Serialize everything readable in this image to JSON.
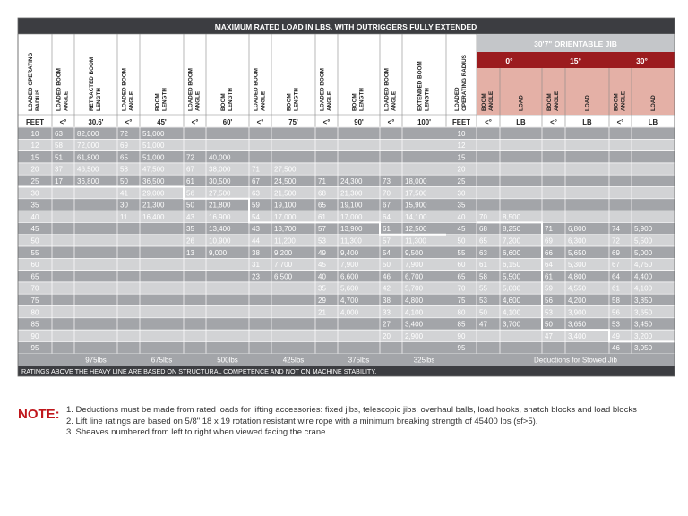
{
  "table": {
    "title": "MAXIMUM RATED LOAD IN LBS. WITH OUTRIGGERS FULLY EXTENDED",
    "jib_title": "30'7\" ORIENTABLE JIB",
    "main_headers": [
      "LOADED OPERATING RADIUS",
      "LOADED BOOM ANGLE",
      "RETRACTED BOOM LENGTH",
      "LOADED BOOM ANGLE",
      "BOOM LENGTH",
      "LOADED BOOM ANGLE",
      "BOOM LENGTH",
      "LOADED BOOM ANGLE",
      "BOOM LENGTH",
      "LOADED BOOM ANGLE",
      "BOOM LENGTH",
      "LOADED BOOM ANGLE",
      "EXTENDED BOOM LENGTH"
    ],
    "main_units": [
      "FEET",
      "<°",
      "30.6'",
      "<°",
      "45'",
      "<°",
      "60'",
      "<°",
      "75'",
      "<°",
      "90'",
      "<°",
      "100'"
    ],
    "jib_radius_header": "LOADED OPERATING RADIUS",
    "jib_radius_unit": "FEET",
    "jib_offsets": [
      "0°",
      "15°",
      "30°"
    ],
    "jib_sub_headers": [
      "BOOM ANGLE",
      "LOAD",
      "BOOM ANGLE",
      "LOAD",
      "BOOM ANGLE",
      "LOAD"
    ],
    "jib_units": [
      "<°",
      "LB",
      "<°",
      "LB",
      "<°",
      "LB"
    ],
    "rows": [
      [
        "10",
        "63",
        "82,000",
        "72",
        "51,000",
        "",
        "",
        "",
        "",
        "",
        "",
        "",
        ""
      ],
      [
        "12",
        "58",
        "72,000",
        "69",
        "51,000",
        "",
        "",
        "",
        "",
        "",
        "",
        "",
        ""
      ],
      [
        "15",
        "51",
        "61,800",
        "65",
        "51,000",
        "72",
        "40,000",
        "",
        "",
        "",
        "",
        "",
        ""
      ],
      [
        "20",
        "37",
        "46,500",
        "58",
        "47,500",
        "67",
        "38,000",
        "71",
        "27,500",
        "",
        "",
        "",
        ""
      ],
      [
        "25",
        "17",
        "36,800",
        "50",
        "36,500",
        "61",
        "30,500",
        "67",
        "24,500",
        "71",
        "24,300",
        "73",
        "18,000"
      ],
      [
        "30",
        "",
        "",
        "41",
        "29,000",
        "56",
        "27,500",
        "63",
        "21,500",
        "68",
        "21,300",
        "70",
        "17,500"
      ],
      [
        "35",
        "",
        "",
        "30",
        "21,300",
        "50",
        "21,800",
        "59",
        "19,100",
        "65",
        "19,100",
        "67",
        "15,900"
      ],
      [
        "40",
        "",
        "",
        "11",
        "16,400",
        "43",
        "16,900",
        "54",
        "17,000",
        "61",
        "17,000",
        "64",
        "14,100"
      ],
      [
        "45",
        "",
        "",
        "",
        "",
        "35",
        "13,400",
        "43",
        "13,700",
        "57",
        "13,900",
        "61",
        "12,500"
      ],
      [
        "50",
        "",
        "",
        "",
        "",
        "26",
        "10,900",
        "44",
        "11,200",
        "53",
        "11,300",
        "57",
        "11,300"
      ],
      [
        "55",
        "",
        "",
        "",
        "",
        "13",
        "9,000",
        "38",
        "9,200",
        "49",
        "9,400",
        "54",
        "9,500"
      ],
      [
        "60",
        "",
        "",
        "",
        "",
        "",
        "",
        "31",
        "7,700",
        "45",
        "7,900",
        "50",
        "7,900"
      ],
      [
        "65",
        "",
        "",
        "",
        "",
        "",
        "",
        "23",
        "6,500",
        "40",
        "6,600",
        "46",
        "6,700"
      ],
      [
        "70",
        "",
        "",
        "",
        "",
        "",
        "",
        "",
        "",
        "35",
        "5,600",
        "42",
        "5,700"
      ],
      [
        "75",
        "",
        "",
        "",
        "",
        "",
        "",
        "",
        "",
        "29",
        "4,700",
        "38",
        "4,800"
      ],
      [
        "80",
        "",
        "",
        "",
        "",
        "",
        "",
        "",
        "",
        "21",
        "4,000",
        "33",
        "4,100"
      ],
      [
        "85",
        "",
        "",
        "",
        "",
        "",
        "",
        "",
        "",
        "",
        "",
        "27",
        "3,400"
      ],
      [
        "90",
        "",
        "",
        "",
        "",
        "",
        "",
        "",
        "",
        "",
        "",
        "20",
        "2,900"
      ],
      [
        "95",
        "",
        "",
        "",
        "",
        "",
        "",
        "",
        "",
        "",
        "",
        "",
        ""
      ]
    ],
    "jib_rows": [
      [
        "10",
        "",
        "",
        "",
        "",
        "",
        ""
      ],
      [
        "12",
        "",
        "",
        "",
        "",
        "",
        ""
      ],
      [
        "15",
        "",
        "",
        "",
        "",
        "",
        ""
      ],
      [
        "20",
        "",
        "",
        "",
        "",
        "",
        ""
      ],
      [
        "25",
        "",
        "",
        "",
        "",
        "",
        ""
      ],
      [
        "30",
        "",
        "",
        "",
        "",
        "",
        ""
      ],
      [
        "35",
        "",
        "",
        "",
        "",
        "",
        ""
      ],
      [
        "40",
        "70",
        "8,500",
        "",
        "",
        "",
        ""
      ],
      [
        "45",
        "68",
        "8,250",
        "71",
        "6,800",
        "74",
        "5,900"
      ],
      [
        "50",
        "65",
        "7,200",
        "69",
        "6,300",
        "72",
        "5,500"
      ],
      [
        "55",
        "63",
        "6,600",
        "66",
        "5,650",
        "69",
        "5,000"
      ],
      [
        "60",
        "61",
        "6,150",
        "64",
        "5,300",
        "67",
        "4,750"
      ],
      [
        "65",
        "58",
        "5,500",
        "61",
        "4,800",
        "64",
        "4,400"
      ],
      [
        "70",
        "55",
        "5,000",
        "59",
        "4,550",
        "61",
        "4,100"
      ],
      [
        "75",
        "53",
        "4,600",
        "56",
        "4,200",
        "58",
        "3,850"
      ],
      [
        "80",
        "50",
        "4,100",
        "53",
        "3,900",
        "56",
        "3,650"
      ],
      [
        "85",
        "47",
        "3,700",
        "50",
        "3,650",
        "53",
        "3,450"
      ],
      [
        "90",
        "",
        "",
        "47",
        "3,400",
        "49",
        "3,200"
      ],
      [
        "95",
        "",
        "",
        "",
        "",
        "46",
        "3,050"
      ]
    ],
    "deductions": [
      "975lbs",
      "675lbs",
      "500lbs",
      "425lbs",
      "375lbs",
      "325lbs"
    ],
    "jib_deduction_label": "Deductions for Stowed Jib",
    "footer_text": "RATINGS ABOVE THE HEAVY LINE ARE BASED ON STRUCTURAL COMPETENCE AND NOT ON MACHINE STABILITY.",
    "colors": {
      "header_dark": "#3c3d41",
      "cell_dark": "#a3a5a9",
      "cell_light": "#d2d3d5",
      "jib_header": "#c4c6c9",
      "jib_red": "#9b1b1e",
      "jib_pink": "#e4b0a6"
    }
  },
  "notes": {
    "title": "NOTE:",
    "items": [
      "1. Deductions must be made from rated loads for lifting accessories: fixed jibs, telescopic jibs, overhaul balls, load hooks, snatch blocks and load blocks",
      "2. Lift line ratings are based on 5/8\" 18 x 19 rotation resistant wire rope with a minimum breaking strength of 45400 lbs (sf>5).",
      "3. Sheaves numbered from left to right when viewed facing the crane"
    ]
  }
}
